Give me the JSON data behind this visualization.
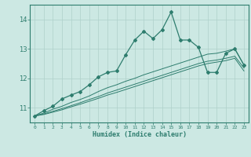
{
  "xlabel": "Humidex (Indice chaleur)",
  "x_values": [
    0,
    1,
    2,
    3,
    4,
    5,
    6,
    7,
    8,
    9,
    10,
    11,
    12,
    13,
    14,
    15,
    16,
    17,
    18,
    19,
    20,
    21,
    22,
    23
  ],
  "main_line": [
    10.72,
    10.9,
    11.05,
    11.3,
    11.43,
    11.55,
    11.78,
    12.05,
    12.2,
    12.25,
    12.8,
    13.3,
    13.6,
    13.35,
    13.65,
    14.25,
    13.3,
    13.3,
    13.05,
    12.2,
    12.2,
    12.85,
    13.0,
    12.45
  ],
  "line2": [
    10.72,
    10.82,
    10.95,
    11.05,
    11.18,
    11.28,
    11.4,
    11.55,
    11.68,
    11.78,
    11.9,
    12.0,
    12.12,
    12.22,
    12.32,
    12.42,
    12.52,
    12.62,
    12.72,
    12.82,
    12.85,
    12.92,
    13.0,
    12.45
  ],
  "line3": [
    10.72,
    10.79,
    10.88,
    10.97,
    11.07,
    11.17,
    11.28,
    11.38,
    11.5,
    11.6,
    11.7,
    11.8,
    11.9,
    12.0,
    12.1,
    12.2,
    12.3,
    12.4,
    12.5,
    12.58,
    12.62,
    12.68,
    12.75,
    12.35
  ],
  "line4": [
    10.72,
    10.77,
    10.85,
    10.93,
    11.03,
    11.12,
    11.22,
    11.32,
    11.43,
    11.52,
    11.62,
    11.72,
    11.82,
    11.92,
    12.02,
    12.12,
    12.22,
    12.32,
    12.42,
    12.5,
    12.55,
    12.6,
    12.68,
    12.25
  ],
  "line_color": "#2e7d6e",
  "bg_color": "#cce8e3",
  "grid_color": "#afd0ca",
  "ylim": [
    10.5,
    14.5
  ],
  "xlim": [
    -0.5,
    23.5
  ],
  "yticks": [
    11,
    12,
    13,
    14
  ],
  "xticks": [
    0,
    1,
    2,
    3,
    4,
    5,
    6,
    7,
    8,
    9,
    10,
    11,
    12,
    13,
    14,
    15,
    16,
    17,
    18,
    19,
    20,
    21,
    22,
    23
  ]
}
